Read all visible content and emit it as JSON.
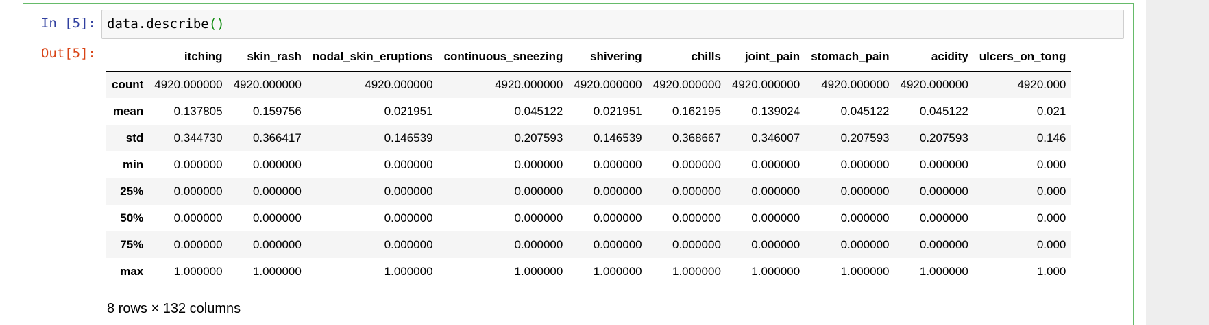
{
  "cell": {
    "in_prompt": "In [5]:",
    "out_prompt": "Out[5]:",
    "code_prefix": "data.describe",
    "code_parens": "()"
  },
  "table": {
    "columns": [
      "itching",
      "skin_rash",
      "nodal_skin_eruptions",
      "continuous_sneezing",
      "shivering",
      "chills",
      "joint_pain",
      "stomach_pain",
      "acidity",
      "ulcers_on_tong"
    ],
    "rows": [
      {
        "label": "count",
        "values": [
          "4920.000000",
          "4920.000000",
          "4920.000000",
          "4920.000000",
          "4920.000000",
          "4920.000000",
          "4920.000000",
          "4920.000000",
          "4920.000000",
          "4920.000"
        ]
      },
      {
        "label": "mean",
        "values": [
          "0.137805",
          "0.159756",
          "0.021951",
          "0.045122",
          "0.021951",
          "0.162195",
          "0.139024",
          "0.045122",
          "0.045122",
          "0.021"
        ]
      },
      {
        "label": "std",
        "values": [
          "0.344730",
          "0.366417",
          "0.146539",
          "0.207593",
          "0.146539",
          "0.368667",
          "0.346007",
          "0.207593",
          "0.207593",
          "0.146"
        ]
      },
      {
        "label": "min",
        "values": [
          "0.000000",
          "0.000000",
          "0.000000",
          "0.000000",
          "0.000000",
          "0.000000",
          "0.000000",
          "0.000000",
          "0.000000",
          "0.000"
        ]
      },
      {
        "label": "25%",
        "values": [
          "0.000000",
          "0.000000",
          "0.000000",
          "0.000000",
          "0.000000",
          "0.000000",
          "0.000000",
          "0.000000",
          "0.000000",
          "0.000"
        ]
      },
      {
        "label": "50%",
        "values": [
          "0.000000",
          "0.000000",
          "0.000000",
          "0.000000",
          "0.000000",
          "0.000000",
          "0.000000",
          "0.000000",
          "0.000000",
          "0.000"
        ]
      },
      {
        "label": "75%",
        "values": [
          "0.000000",
          "0.000000",
          "0.000000",
          "0.000000",
          "0.000000",
          "0.000000",
          "0.000000",
          "0.000000",
          "0.000000",
          "0.000"
        ]
      },
      {
        "label": "max",
        "values": [
          "1.000000",
          "1.000000",
          "1.000000",
          "1.000000",
          "1.000000",
          "1.000000",
          "1.000000",
          "1.000000",
          "1.000000",
          "1.000"
        ]
      }
    ]
  },
  "shape_note": "8 rows × 132 columns",
  "colors": {
    "cell_border": "#66bb6a",
    "in_prompt": "#303f9f",
    "out_prompt": "#d84315"
  }
}
